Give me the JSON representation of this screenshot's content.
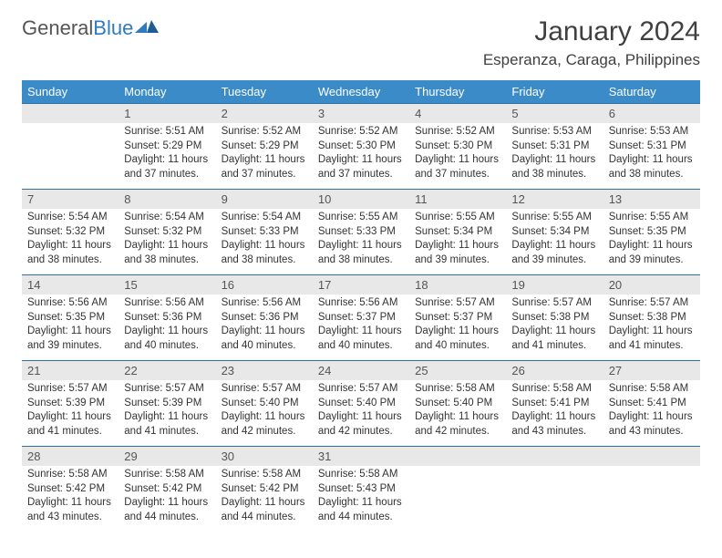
{
  "logo": {
    "text1": "General",
    "text2": "Blue"
  },
  "header": {
    "month": "January 2024",
    "location": "Esperanza, Caraga, Philippines"
  },
  "colors": {
    "header_bg": "#3b8bc9",
    "header_text": "#ffffff",
    "daynum_bg": "#e8e8e8",
    "border_top": "#2f6fa3",
    "text": "#333333",
    "logo_gray": "#555555",
    "logo_blue": "#2f7bbf"
  },
  "dayNames": [
    "Sunday",
    "Monday",
    "Tuesday",
    "Wednesday",
    "Thursday",
    "Friday",
    "Saturday"
  ],
  "weeks": [
    [
      {
        "n": "",
        "lines": []
      },
      {
        "n": "1",
        "lines": [
          "Sunrise: 5:51 AM",
          "Sunset: 5:29 PM",
          "Daylight: 11 hours",
          "and 37 minutes."
        ]
      },
      {
        "n": "2",
        "lines": [
          "Sunrise: 5:52 AM",
          "Sunset: 5:29 PM",
          "Daylight: 11 hours",
          "and 37 minutes."
        ]
      },
      {
        "n": "3",
        "lines": [
          "Sunrise: 5:52 AM",
          "Sunset: 5:30 PM",
          "Daylight: 11 hours",
          "and 37 minutes."
        ]
      },
      {
        "n": "4",
        "lines": [
          "Sunrise: 5:52 AM",
          "Sunset: 5:30 PM",
          "Daylight: 11 hours",
          "and 37 minutes."
        ]
      },
      {
        "n": "5",
        "lines": [
          "Sunrise: 5:53 AM",
          "Sunset: 5:31 PM",
          "Daylight: 11 hours",
          "and 38 minutes."
        ]
      },
      {
        "n": "6",
        "lines": [
          "Sunrise: 5:53 AM",
          "Sunset: 5:31 PM",
          "Daylight: 11 hours",
          "and 38 minutes."
        ]
      }
    ],
    [
      {
        "n": "7",
        "lines": [
          "Sunrise: 5:54 AM",
          "Sunset: 5:32 PM",
          "Daylight: 11 hours",
          "and 38 minutes."
        ]
      },
      {
        "n": "8",
        "lines": [
          "Sunrise: 5:54 AM",
          "Sunset: 5:32 PM",
          "Daylight: 11 hours",
          "and 38 minutes."
        ]
      },
      {
        "n": "9",
        "lines": [
          "Sunrise: 5:54 AM",
          "Sunset: 5:33 PM",
          "Daylight: 11 hours",
          "and 38 minutes."
        ]
      },
      {
        "n": "10",
        "lines": [
          "Sunrise: 5:55 AM",
          "Sunset: 5:33 PM",
          "Daylight: 11 hours",
          "and 38 minutes."
        ]
      },
      {
        "n": "11",
        "lines": [
          "Sunrise: 5:55 AM",
          "Sunset: 5:34 PM",
          "Daylight: 11 hours",
          "and 39 minutes."
        ]
      },
      {
        "n": "12",
        "lines": [
          "Sunrise: 5:55 AM",
          "Sunset: 5:34 PM",
          "Daylight: 11 hours",
          "and 39 minutes."
        ]
      },
      {
        "n": "13",
        "lines": [
          "Sunrise: 5:55 AM",
          "Sunset: 5:35 PM",
          "Daylight: 11 hours",
          "and 39 minutes."
        ]
      }
    ],
    [
      {
        "n": "14",
        "lines": [
          "Sunrise: 5:56 AM",
          "Sunset: 5:35 PM",
          "Daylight: 11 hours",
          "and 39 minutes."
        ]
      },
      {
        "n": "15",
        "lines": [
          "Sunrise: 5:56 AM",
          "Sunset: 5:36 PM",
          "Daylight: 11 hours",
          "and 40 minutes."
        ]
      },
      {
        "n": "16",
        "lines": [
          "Sunrise: 5:56 AM",
          "Sunset: 5:36 PM",
          "Daylight: 11 hours",
          "and 40 minutes."
        ]
      },
      {
        "n": "17",
        "lines": [
          "Sunrise: 5:56 AM",
          "Sunset: 5:37 PM",
          "Daylight: 11 hours",
          "and 40 minutes."
        ]
      },
      {
        "n": "18",
        "lines": [
          "Sunrise: 5:57 AM",
          "Sunset: 5:37 PM",
          "Daylight: 11 hours",
          "and 40 minutes."
        ]
      },
      {
        "n": "19",
        "lines": [
          "Sunrise: 5:57 AM",
          "Sunset: 5:38 PM",
          "Daylight: 11 hours",
          "and 41 minutes."
        ]
      },
      {
        "n": "20",
        "lines": [
          "Sunrise: 5:57 AM",
          "Sunset: 5:38 PM",
          "Daylight: 11 hours",
          "and 41 minutes."
        ]
      }
    ],
    [
      {
        "n": "21",
        "lines": [
          "Sunrise: 5:57 AM",
          "Sunset: 5:39 PM",
          "Daylight: 11 hours",
          "and 41 minutes."
        ]
      },
      {
        "n": "22",
        "lines": [
          "Sunrise: 5:57 AM",
          "Sunset: 5:39 PM",
          "Daylight: 11 hours",
          "and 41 minutes."
        ]
      },
      {
        "n": "23",
        "lines": [
          "Sunrise: 5:57 AM",
          "Sunset: 5:40 PM",
          "Daylight: 11 hours",
          "and 42 minutes."
        ]
      },
      {
        "n": "24",
        "lines": [
          "Sunrise: 5:57 AM",
          "Sunset: 5:40 PM",
          "Daylight: 11 hours",
          "and 42 minutes."
        ]
      },
      {
        "n": "25",
        "lines": [
          "Sunrise: 5:58 AM",
          "Sunset: 5:40 PM",
          "Daylight: 11 hours",
          "and 42 minutes."
        ]
      },
      {
        "n": "26",
        "lines": [
          "Sunrise: 5:58 AM",
          "Sunset: 5:41 PM",
          "Daylight: 11 hours",
          "and 43 minutes."
        ]
      },
      {
        "n": "27",
        "lines": [
          "Sunrise: 5:58 AM",
          "Sunset: 5:41 PM",
          "Daylight: 11 hours",
          "and 43 minutes."
        ]
      }
    ],
    [
      {
        "n": "28",
        "lines": [
          "Sunrise: 5:58 AM",
          "Sunset: 5:42 PM",
          "Daylight: 11 hours",
          "and 43 minutes."
        ]
      },
      {
        "n": "29",
        "lines": [
          "Sunrise: 5:58 AM",
          "Sunset: 5:42 PM",
          "Daylight: 11 hours",
          "and 44 minutes."
        ]
      },
      {
        "n": "30",
        "lines": [
          "Sunrise: 5:58 AM",
          "Sunset: 5:42 PM",
          "Daylight: 11 hours",
          "and 44 minutes."
        ]
      },
      {
        "n": "31",
        "lines": [
          "Sunrise: 5:58 AM",
          "Sunset: 5:43 PM",
          "Daylight: 11 hours",
          "and 44 minutes."
        ]
      },
      {
        "n": "",
        "lines": []
      },
      {
        "n": "",
        "lines": []
      },
      {
        "n": "",
        "lines": []
      }
    ]
  ]
}
